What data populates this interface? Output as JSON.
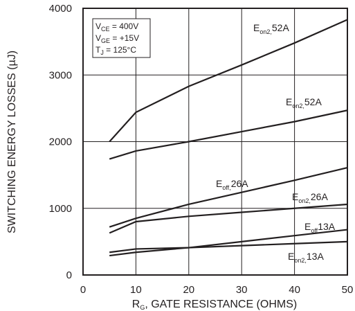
{
  "chart_data": {
    "type": "line",
    "xlabel": "R",
    "xlabel_sub": "G",
    "xlabel_rest": ", GATE RESISTANCE (OHMS)",
    "ylabel": "SWITCHING ENERGY LOSSES (µJ)",
    "xlim": [
      0,
      50
    ],
    "ylim": [
      0,
      4000
    ],
    "x_ticks": [
      0,
      10,
      20,
      30,
      40,
      50
    ],
    "y_ticks": [
      0,
      1000,
      2000,
      3000,
      4000
    ],
    "grid": true,
    "conditions": [
      {
        "main": "V",
        "sub": "CE",
        "rest": " = 400V"
      },
      {
        "main": "V",
        "sub": "GE",
        "rest": " = +15V"
      },
      {
        "main": "T",
        "sub": "J",
        "rest": " = 125°C"
      }
    ],
    "series": [
      {
        "label_main": "E",
        "label_sub": "on2,",
        "label_rest": "52A",
        "x": [
          5,
          10,
          20,
          30,
          40,
          50
        ],
        "y": [
          2000,
          2440,
          2830,
          3150,
          3480,
          3830
        ]
      },
      {
        "label_main": "E",
        "label_sub": "on2,",
        "label_rest": "52A",
        "x": [
          5,
          10,
          20,
          30,
          40,
          50
        ],
        "y": [
          1740,
          1860,
          2000,
          2150,
          2300,
          2470
        ]
      },
      {
        "label_main": "E",
        "label_sub": "off,",
        "label_rest": "26A",
        "x": [
          5,
          10,
          20,
          30,
          40,
          50
        ],
        "y": [
          720,
          850,
          1060,
          1240,
          1420,
          1610
        ]
      },
      {
        "label_main": "E",
        "label_sub": "on2,",
        "label_rest": "26A",
        "x": [
          5,
          10,
          20,
          30,
          40,
          50
        ],
        "y": [
          630,
          800,
          880,
          940,
          1000,
          1060
        ]
      },
      {
        "label_main": "E",
        "label_sub": "off",
        "label_rest": "13A",
        "x": [
          5,
          10,
          20,
          30,
          40,
          50
        ],
        "y": [
          290,
          340,
          410,
          500,
          590,
          680
        ]
      },
      {
        "label_main": "E",
        "label_sub": "on2,",
        "label_rest": "13A",
        "x": [
          5,
          10,
          20,
          30,
          40,
          50
        ],
        "y": [
          340,
          390,
          410,
          440,
          470,
          500
        ]
      }
    ]
  }
}
